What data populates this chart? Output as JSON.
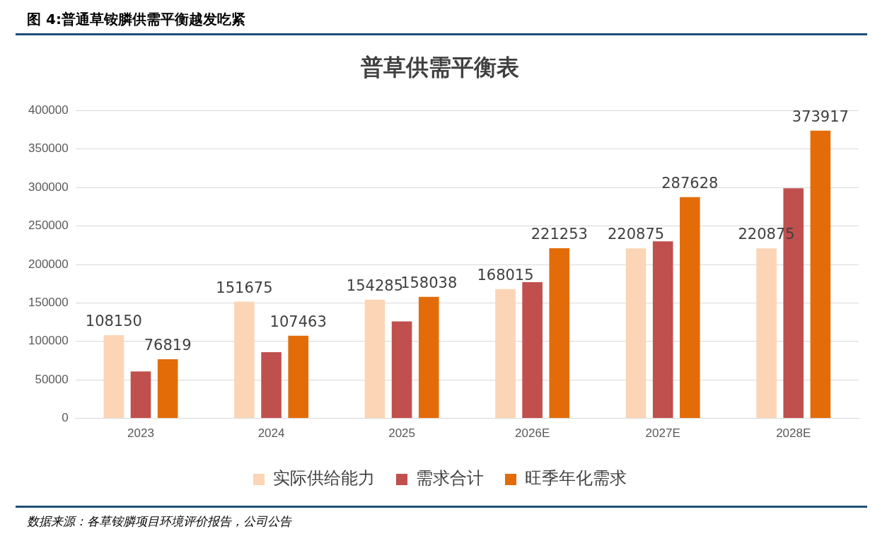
{
  "chart_data": {
    "type": "bar",
    "title": "图 4:普通草铵膦供需平衡越发吃紧",
    "subtitle": "普草供需平衡表",
    "categories": [
      "2023",
      "2024",
      "2025",
      "2026E",
      "2027E",
      "2028E"
    ],
    "series": [
      {
        "name": "实际供给能力",
        "color": "#fbd5b5",
        "values": [
          108150,
          151675,
          154285,
          168015,
          220875,
          220875
        ],
        "value_labels": [
          "108150",
          "151675",
          "154285",
          "168015",
          "220875",
          "220875"
        ]
      },
      {
        "name": "需求合计",
        "color": "#c0504d",
        "values": [
          61000,
          86000,
          126000,
          177000,
          230000,
          299000
        ]
      },
      {
        "name": "旺季年化需求",
        "color": "#e36c09",
        "values": [
          76819,
          107463,
          158038,
          221253,
          287628,
          373917
        ],
        "value_labels": [
          "76819",
          "107463",
          "158038",
          "221253",
          "287628",
          "373917"
        ]
      }
    ],
    "ylim": [
      0,
      400000
    ],
    "yticks": [
      0,
      50000,
      100000,
      150000,
      200000,
      250000,
      300000,
      350000,
      400000
    ],
    "grid": "y",
    "legend": "bottom",
    "annotations": [
      "数据来源：各草铵膦项目环境评价报告，公司公告"
    ]
  }
}
